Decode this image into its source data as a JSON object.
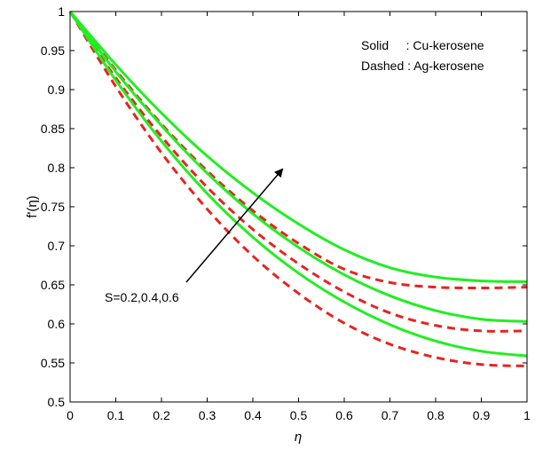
{
  "chart_data": {
    "type": "line",
    "xlabel": "η",
    "ylabel": "f'(η)",
    "xlim": [
      0,
      1
    ],
    "ylim": [
      0.5,
      1
    ],
    "xticks": [
      "0",
      "0.1",
      "0.2",
      "0.3",
      "0.4",
      "0.5",
      "0.6",
      "0.7",
      "0.8",
      "0.9",
      "1"
    ],
    "yticks": [
      "0.5",
      "0.55",
      "0.6",
      "0.65",
      "0.7",
      "0.75",
      "0.8",
      "0.85",
      "0.9",
      "0.95",
      "1"
    ],
    "grid": false,
    "legend_text": [
      "Solid     : Cu-kerosene",
      "Dashed : Ag-kerosene"
    ],
    "annotation": "S=0.2,0.4,0.6",
    "colors": {
      "solid": "#22ee22",
      "dashed": "#e8231f",
      "axis": "#000000"
    },
    "x": [
      0,
      0.1,
      0.2,
      0.3,
      0.4,
      0.5,
      0.6,
      0.7,
      0.8,
      0.9,
      1.0
    ],
    "series": [
      {
        "style": "solid",
        "values": [
          1.0,
          0.912,
          0.834,
          0.767,
          0.711,
          0.665,
          0.628,
          0.599,
          0.578,
          0.565,
          0.559
        ]
      },
      {
        "style": "solid",
        "values": [
          1.0,
          0.923,
          0.854,
          0.793,
          0.741,
          0.698,
          0.663,
          0.636,
          0.617,
          0.606,
          0.603
        ]
      },
      {
        "style": "solid",
        "values": [
          1.0,
          0.932,
          0.87,
          0.815,
          0.768,
          0.728,
          0.695,
          0.672,
          0.66,
          0.655,
          0.654
        ]
      },
      {
        "style": "dashed",
        "values": [
          1.0,
          0.904,
          0.819,
          0.747,
          0.687,
          0.639,
          0.601,
          0.574,
          0.557,
          0.548,
          0.546
        ]
      },
      {
        "style": "dashed",
        "values": [
          1.0,
          0.915,
          0.84,
          0.775,
          0.721,
          0.677,
          0.641,
          0.614,
          0.598,
          0.591,
          0.591
        ]
      },
      {
        "style": "dashed",
        "values": [
          1.0,
          0.925,
          0.856,
          0.796,
          0.745,
          0.703,
          0.67,
          0.653,
          0.647,
          0.646,
          0.647
        ]
      }
    ]
  }
}
